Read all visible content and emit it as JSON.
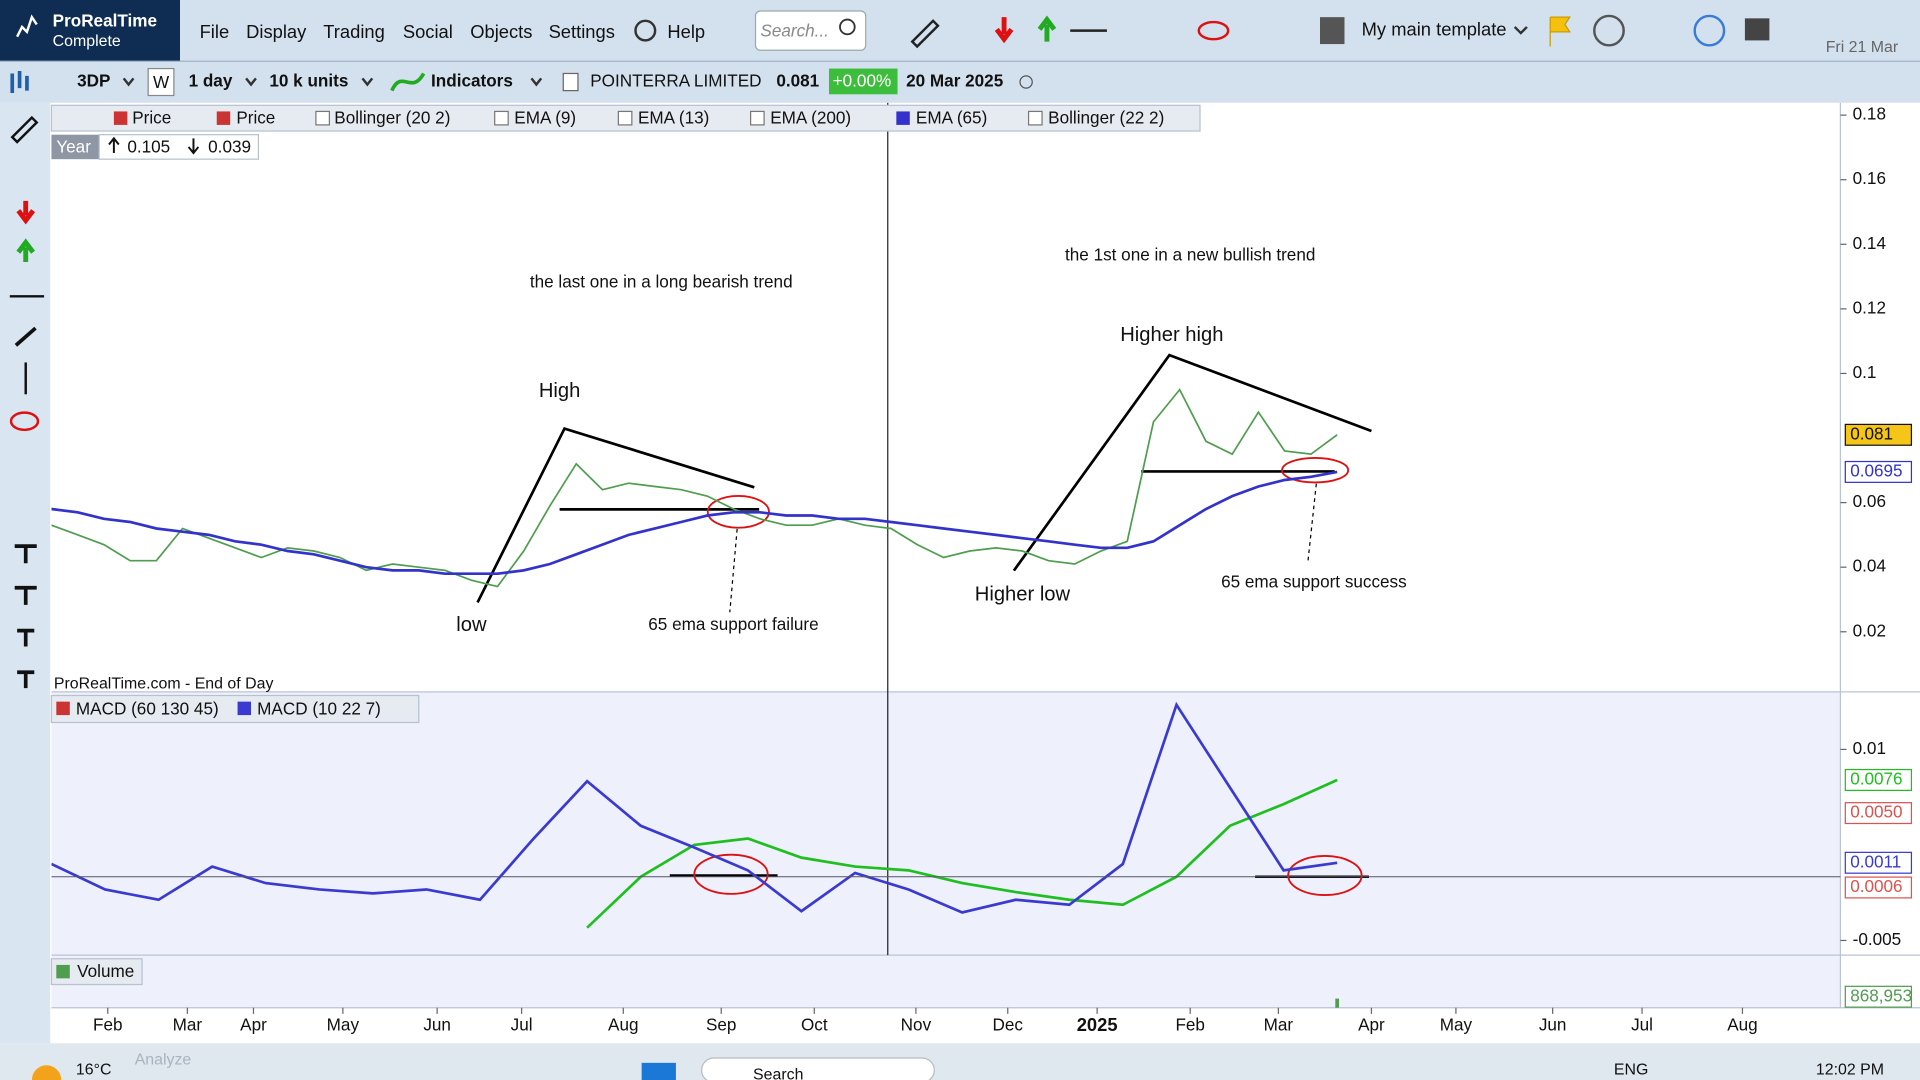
{
  "menubar": {
    "logo": "ProRealTime",
    "edition": "Complete",
    "menus": [
      "File",
      "Display",
      "Trading",
      "Social",
      "Objects",
      "Settings"
    ],
    "help": "Help",
    "search": "Search...",
    "template": "My main template",
    "date": "Fri 21 Mar"
  },
  "toolbar": {
    "ticker": "3DP",
    "weekly": "W",
    "timeframe": "1 day",
    "units": "10 k units",
    "indicators": "Indicators",
    "instrument": "POINTERRA LIMITED",
    "last_price": 0.081,
    "change": "+0.00%",
    "date": "20 Mar 2025"
  },
  "price_legend": [
    "Price",
    "Bollinger (20 2)",
    "EMA (9)",
    "EMA (13)",
    "EMA (200)",
    "Bollinger (22 2)"
  ],
  "year_range": {
    "label": "Year",
    "high": 0.105,
    "low": 0.039
  },
  "source": "ProRealTime.com - End of Day",
  "time_axis": [
    "Feb",
    "Mar",
    "Apr",
    "May",
    "Jun",
    "Jul",
    "Aug",
    "Sep",
    "Oct",
    "Nov",
    "Dec",
    "2025",
    "Feb",
    "Mar",
    "Apr",
    "May",
    "Jun",
    "Jul",
    "Aug"
  ],
  "chart_data": [
    {
      "type": "line",
      "annotations": [
        "the last one in a long bearish trend",
        "High",
        "low",
        "65 ema support failure",
        "the 1st one in a new bullish trend",
        "Higher high",
        "Higher low",
        "65 ema support success"
      ],
      "ylim": [
        0.0014,
        0.1838
      ],
      "yticks": [
        0.18,
        0.16,
        0.14,
        0.12,
        0.1,
        0.06,
        0.04,
        0.02
      ],
      "series": [
        {
          "name": "Price",
          "color": "#4f9d4f",
          "values": [
            0.053,
            0.05,
            0.047,
            0.042,
            0.042,
            0.052,
            0.049,
            0.046,
            0.043,
            0.046,
            0.045,
            0.043,
            0.039,
            0.041,
            0.04,
            0.039,
            0.036,
            0.034,
            0.045,
            0.059,
            0.072,
            0.064,
            0.066,
            0.065,
            0.064,
            0.062,
            0.058,
            0.055,
            0.053,
            0.053,
            0.055,
            0.053,
            0.052,
            0.047,
            0.043,
            0.045,
            0.046,
            0.045,
            0.042,
            0.041,
            0.045,
            0.048,
            0.085,
            0.095,
            0.079,
            0.075,
            0.088,
            0.076,
            0.075,
            0.081
          ]
        },
        {
          "name": "EMA (65)",
          "color": "#3333cc",
          "values": [
            0.058,
            0.057,
            0.055,
            0.054,
            0.052,
            0.051,
            0.05,
            0.048,
            0.047,
            0.045,
            0.044,
            0.042,
            0.04,
            0.039,
            0.039,
            0.038,
            0.038,
            0.038,
            0.039,
            0.041,
            0.044,
            0.047,
            0.05,
            0.052,
            0.054,
            0.056,
            0.057,
            0.057,
            0.056,
            0.056,
            0.055,
            0.055,
            0.054,
            0.053,
            0.052,
            0.051,
            0.05,
            0.049,
            0.048,
            0.047,
            0.046,
            0.046,
            0.048,
            0.053,
            0.058,
            0.062,
            0.065,
            0.067,
            0.068,
            0.0695
          ]
        }
      ]
    },
    {
      "type": "line",
      "ylim": [
        -0.00615,
        0.01452
      ],
      "yticks": [
        0.01,
        -0.005
      ],
      "series": [
        {
          "name": "MACD (60 130 45)",
          "color": "#1fbf1f",
          "values": [
            null,
            null,
            null,
            null,
            null,
            null,
            null,
            null,
            null,
            null,
            -0.004,
            0.0,
            0.0025,
            0.003,
            0.0015,
            0.0008,
            0.0005,
            -0.0005,
            -0.0012,
            -0.0018,
            -0.0022,
            0.0,
            0.004,
            0.0057,
            0.0076
          ]
        },
        {
          "name": "MACD (10 22 7)",
          "color": "#3a3ad0",
          "values": [
            0.001,
            -0.001,
            -0.0018,
            0.0008,
            -0.0005,
            -0.001,
            -0.0013,
            -0.001,
            -0.0018,
            0.003,
            0.0075,
            0.004,
            0.0023,
            0.0005,
            -0.0027,
            0.0003,
            -0.001,
            -0.0028,
            -0.0018,
            -0.0022,
            0.001,
            0.0135,
            0.007,
            0.0005,
            0.0011
          ]
        }
      ],
      "markers": [
        {
          "value": 0.005,
          "label": "0.0050",
          "color": "#d9534f"
        },
        {
          "value": 0.0006,
          "label": "0.0006",
          "color": "#d9534f"
        }
      ]
    },
    {
      "type": "bar",
      "title": "Volume",
      "color": "#4f9d4f",
      "ylim": [
        0,
        5000000
      ],
      "last_value": {
        "value": 868953,
        "label": "868,953"
      }
    }
  ],
  "taskbar": {
    "tab": "Analyze",
    "weather": "16°C",
    "search": "Search",
    "language": "ENG",
    "time": "12:02 PM"
  }
}
